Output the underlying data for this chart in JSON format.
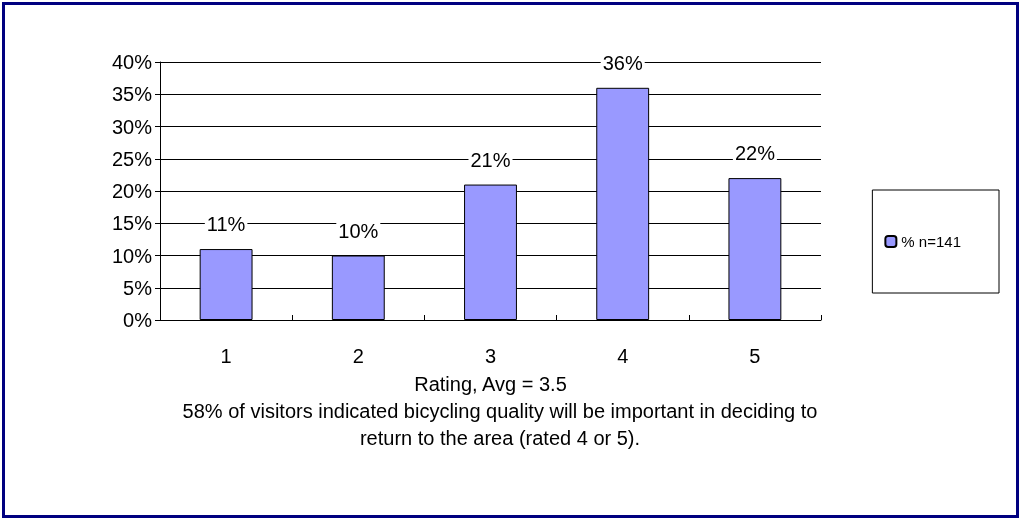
{
  "chart_data": {
    "type": "bar",
    "categories": [
      "1",
      "2",
      "3",
      "4",
      "5"
    ],
    "series": [
      {
        "name": "% n=141",
        "color": "#9999ff",
        "values": [
          11,
          10,
          21,
          36,
          22
        ]
      }
    ],
    "ylim": [
      0,
      40
    ],
    "yticks": [
      {
        "value": 0,
        "label": "0%"
      },
      {
        "value": 5,
        "label": "5%"
      },
      {
        "value": 10,
        "label": "10%"
      },
      {
        "value": 15,
        "label": "15%"
      },
      {
        "value": 20,
        "label": "20%"
      },
      {
        "value": 25,
        "label": "25%"
      },
      {
        "value": 30,
        "label": "30%"
      },
      {
        "value": 35,
        "label": "35%"
      },
      {
        "value": 40,
        "label": "40%"
      }
    ],
    "value_labels": [
      [
        "11%",
        "10%",
        "21%",
        "36%",
        "22%"
      ]
    ],
    "xlabel": "Rating, Avg = 3.5",
    "annotations": [
      "58% of visitors indicated bicycling quality will be important in deciding to return to the area (rated 4 or 5)."
    ],
    "grid": "y",
    "legend": "right"
  }
}
